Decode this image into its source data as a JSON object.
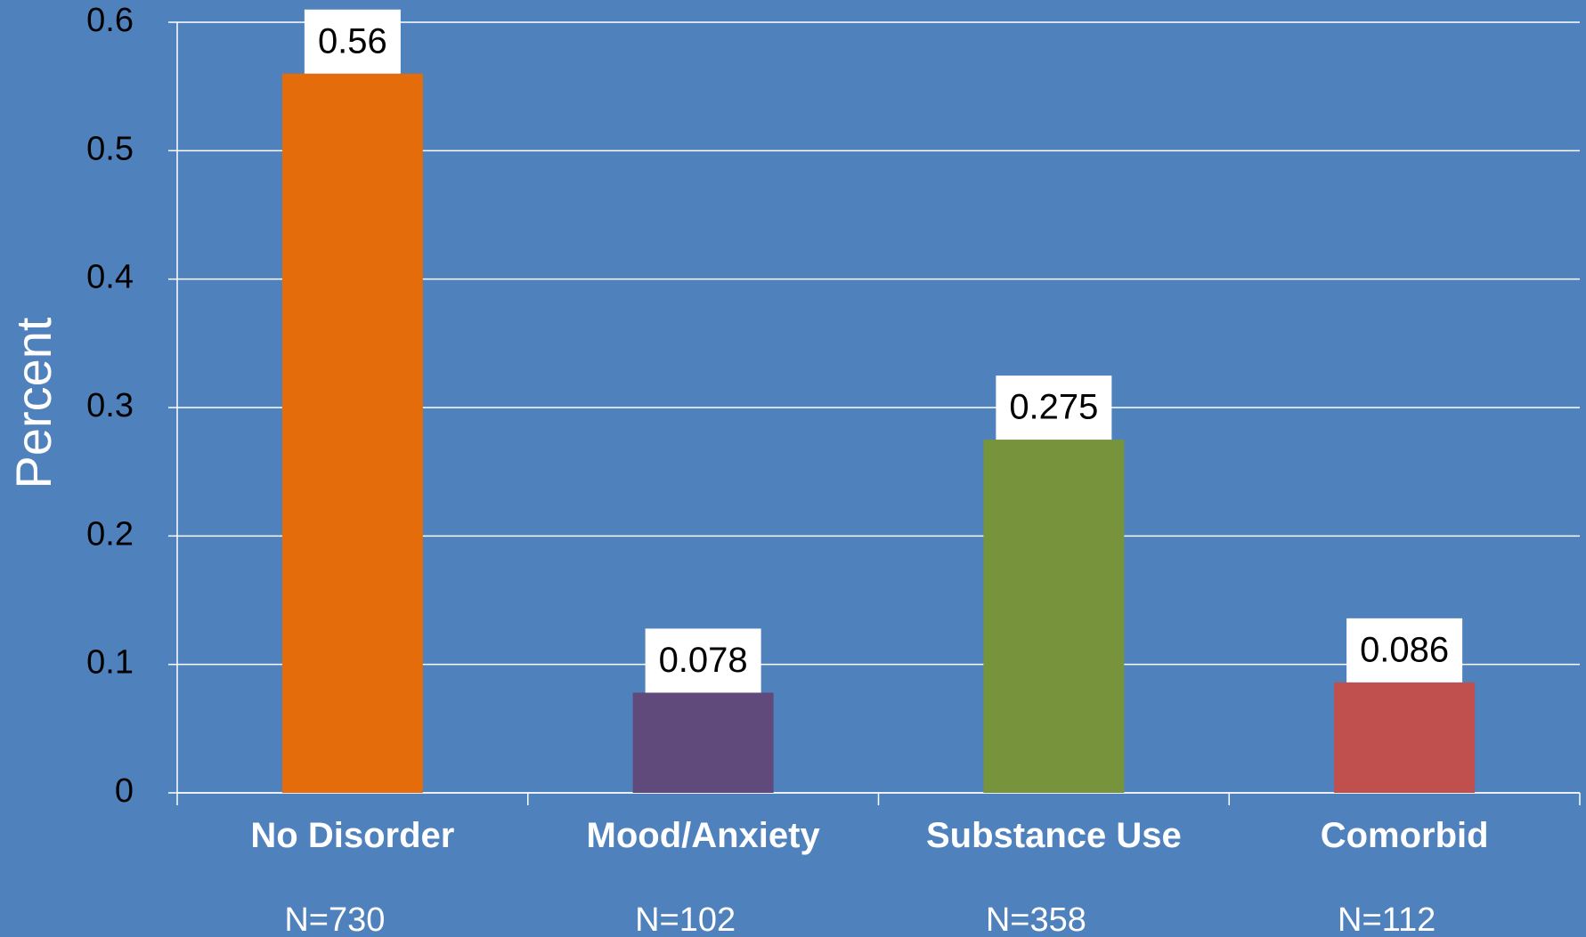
{
  "chart_data": {
    "type": "bar",
    "ylabel": "Percent",
    "xlabel": "",
    "ylim": [
      0,
      0.6
    ],
    "yticks": [
      "0",
      "0.1",
      "0.2",
      "0.3",
      "0.4",
      "0.5",
      "0.6"
    ],
    "grid": true,
    "categories": [
      "No Disorder",
      "Mood/Anxiety",
      "Substance Use",
      "Comorbid"
    ],
    "category_counts": [
      "N=730",
      "N=102",
      "N=358",
      "N=112"
    ],
    "values": [
      0.56,
      0.078,
      0.275,
      0.086
    ],
    "data_labels": [
      "0.56",
      "0.078",
      "0.275",
      "0.086"
    ],
    "bar_colors": [
      "#e46c0a",
      "#604a7b",
      "#77933c",
      "#c0504d"
    ],
    "background_color": "#4f81bd"
  }
}
